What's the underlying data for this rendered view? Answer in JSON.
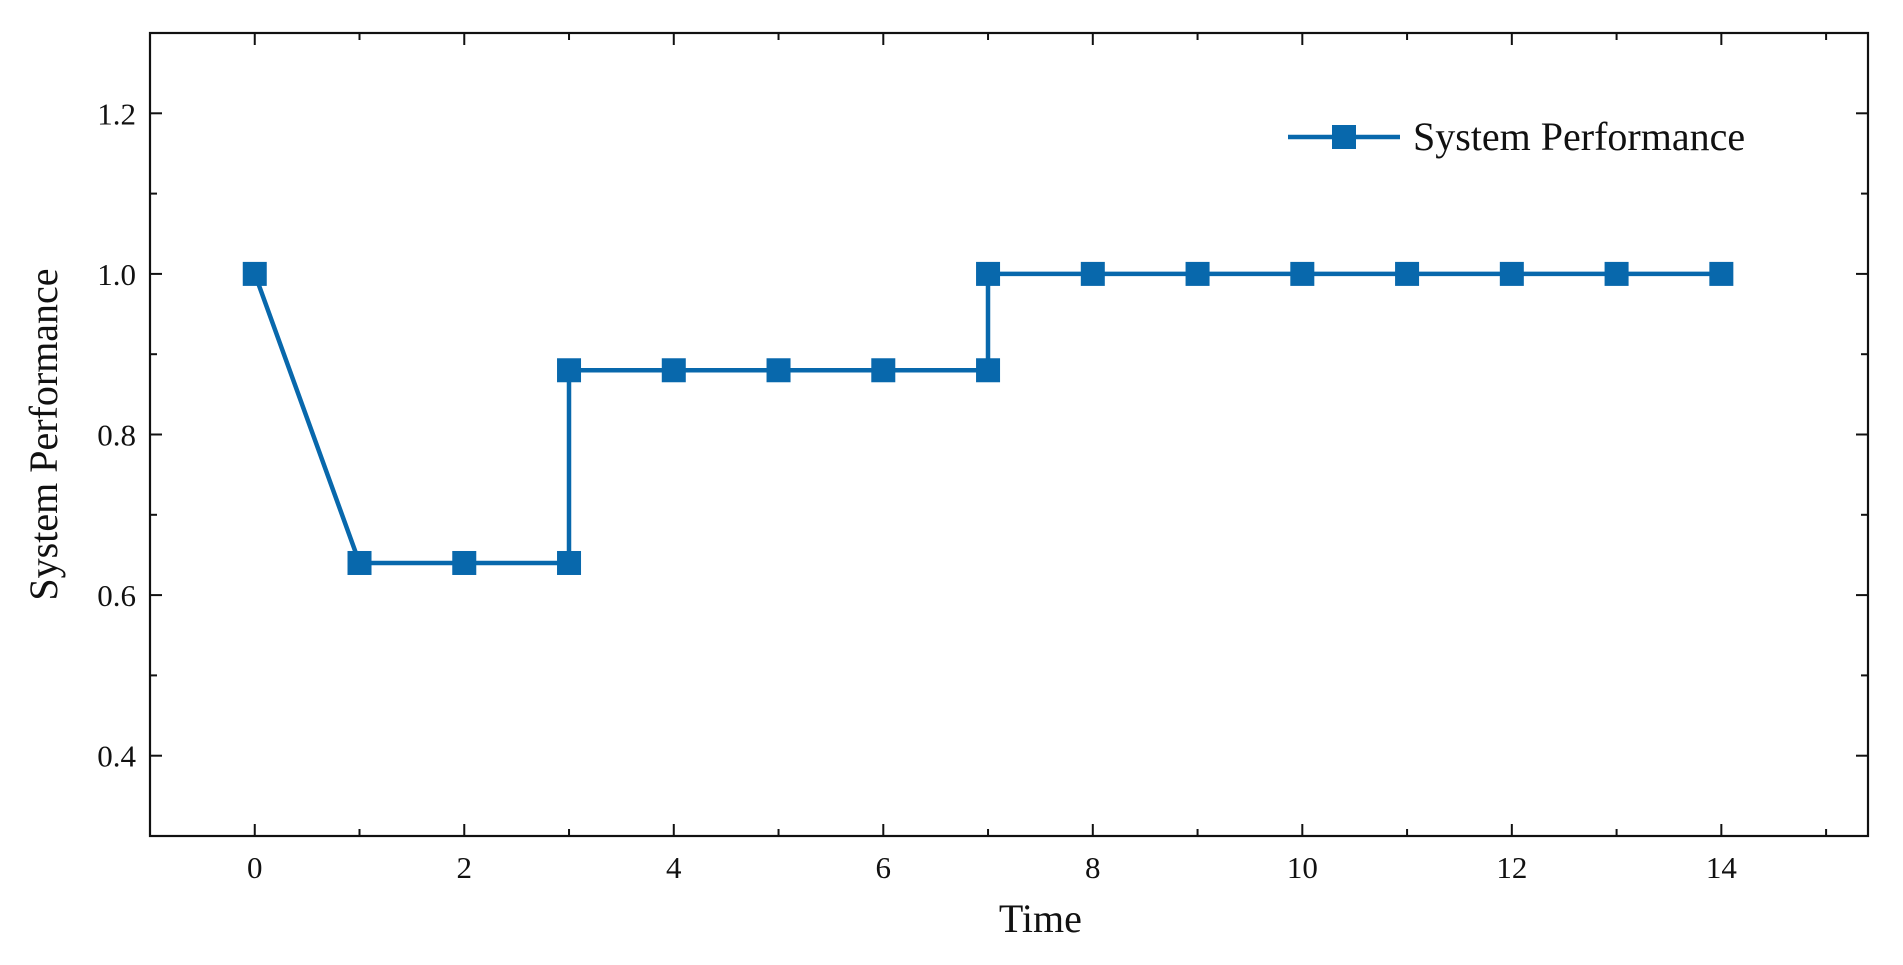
{
  "chart_data": {
    "type": "line",
    "title": "",
    "xlabel": "Time",
    "ylabel": "System Performance",
    "xlim": [
      -1,
      15.4
    ],
    "ylim": [
      0.3,
      1.3
    ],
    "x_ticks": [
      0,
      2,
      4,
      6,
      8,
      10,
      12,
      14
    ],
    "x_tick_labels": [
      "0",
      "2",
      "4",
      "6",
      "8",
      "10",
      "12",
      "14"
    ],
    "y_ticks": [
      0.4,
      0.6,
      0.8,
      1.0,
      1.2
    ],
    "y_tick_labels": [
      "0.4",
      "0.6",
      "0.8",
      "1.0",
      "1.2"
    ],
    "grid": false,
    "legend_position": "top-right",
    "series": [
      {
        "name": "System Performance",
        "color": "#0868ac",
        "marker": "square",
        "x": [
          0,
          1,
          2,
          3,
          3,
          4,
          5,
          6,
          7,
          7,
          8,
          9,
          10,
          11,
          12,
          13,
          14
        ],
        "y": [
          1.0,
          0.64,
          0.64,
          0.64,
          0.88,
          0.88,
          0.88,
          0.88,
          0.88,
          1.0,
          1.0,
          1.0,
          1.0,
          1.0,
          1.0,
          1.0,
          1.0
        ]
      }
    ]
  }
}
